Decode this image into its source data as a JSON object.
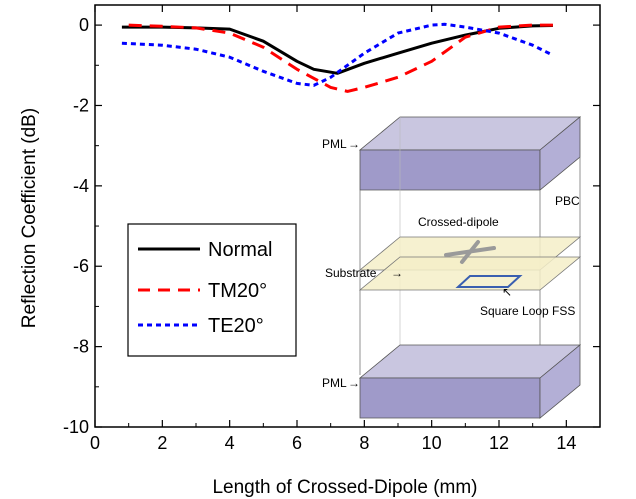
{
  "chart_data": {
    "type": "line",
    "title": "",
    "xlabel": "Length of Crossed-Dipole (mm)",
    "ylabel": "Reflection Coefficient (dB)",
    "xlim": [
      0,
      15
    ],
    "ylim": [
      -10,
      0.5
    ],
    "xticks": [
      0,
      2,
      4,
      6,
      8,
      10,
      12,
      14
    ],
    "yticks": [
      0,
      -2,
      -4,
      -6,
      -8,
      -10
    ],
    "grid": false,
    "legend_position": "middle-left",
    "series": [
      {
        "name": "Normal",
        "color": "#000000",
        "style": "solid",
        "x": [
          0.8,
          2,
          3,
          4,
          5,
          6,
          6.5,
          7.2,
          8,
          9,
          10,
          11,
          12,
          13,
          13.6
        ],
        "y": [
          -0.05,
          -0.05,
          -0.07,
          -0.1,
          -0.4,
          -0.9,
          -1.1,
          -1.2,
          -0.95,
          -0.7,
          -0.45,
          -0.25,
          -0.08,
          -0.02,
          -0.01
        ]
      },
      {
        "name": "TM20°",
        "color": "#ff0000",
        "style": "dashed",
        "x": [
          1,
          2,
          3,
          4,
          5,
          6,
          7,
          7.5,
          8,
          9,
          10,
          11,
          12,
          13,
          13.6
        ],
        "y": [
          0,
          -0.03,
          -0.07,
          -0.2,
          -0.55,
          -1.1,
          -1.55,
          -1.65,
          -1.55,
          -1.3,
          -0.9,
          -0.3,
          -0.05,
          0,
          0
        ]
      },
      {
        "name": "TE20°",
        "color": "#0000ff",
        "style": "dotted",
        "x": [
          0.8,
          2,
          3,
          4,
          5,
          6,
          6.5,
          7,
          8,
          9,
          10,
          10.4,
          11,
          12,
          13,
          13.6
        ],
        "y": [
          -0.45,
          -0.5,
          -0.6,
          -0.8,
          -1.15,
          -1.45,
          -1.5,
          -1.3,
          -0.7,
          -0.2,
          0,
          0.02,
          -0.05,
          -0.2,
          -0.5,
          -0.75
        ]
      }
    ]
  },
  "inset": {
    "pml_top": "PML",
    "pml_bottom": "PML",
    "pbc": "PBC",
    "crossed_dipole": "Crossed-dipole",
    "substrate": "Substrate",
    "square_loop": "Square Loop FSS"
  }
}
